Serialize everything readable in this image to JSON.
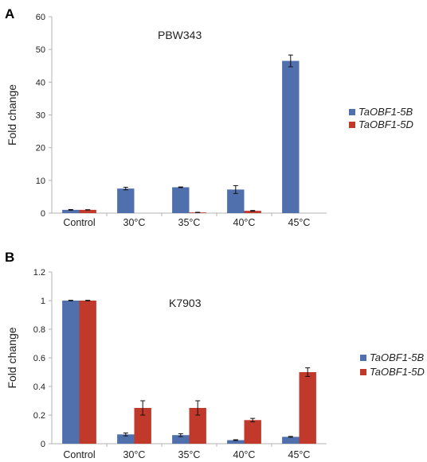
{
  "chart_data": [
    {
      "type": "bar",
      "panel_label": "A",
      "annotation": "PBW343",
      "ylabel": "Fold change",
      "xlabel": "",
      "ylim": [
        0,
        60
      ],
      "yticks": [
        "0",
        "10",
        "20",
        "30",
        "40",
        "50",
        "60"
      ],
      "grid": false,
      "legend_position": "right",
      "categories": [
        "Control",
        "30°C",
        "35°C",
        "40°C",
        "45°C"
      ],
      "series": [
        {
          "name": "TaOBF1-5B",
          "color": "#4f6fad",
          "values": [
            1.0,
            7.5,
            7.9,
            7.2,
            46.5
          ],
          "errors": [
            0.1,
            0.4,
            0.1,
            1.2,
            1.8
          ]
        },
        {
          "name": "TaOBF1-5D",
          "color": "#c0392b",
          "values": [
            1.0,
            null,
            0.2,
            0.7,
            null
          ],
          "errors": [
            0.05,
            null,
            0.05,
            0.1,
            null
          ]
        }
      ]
    },
    {
      "type": "bar",
      "panel_label": "B",
      "annotation": "K7903",
      "ylabel": "Fold change",
      "xlabel": "",
      "ylim": [
        0,
        1.2
      ],
      "yticks": [
        "0",
        "0.2",
        "0.4",
        "0.6",
        "0.8",
        "1",
        "1.2"
      ],
      "grid": false,
      "legend_position": "right",
      "categories": [
        "Control",
        "30°C",
        "35°C",
        "40°C",
        "45°C"
      ],
      "series": [
        {
          "name": "TaOBF1-5B",
          "color": "#4f6fad",
          "values": [
            1.0,
            0.065,
            0.06,
            0.025,
            0.048
          ],
          "errors": [
            0.002,
            0.01,
            0.01,
            0.003,
            0.003
          ]
        },
        {
          "name": "TaOBF1-5D",
          "color": "#c0392b",
          "values": [
            1.0,
            0.25,
            0.25,
            0.165,
            0.5
          ],
          "errors": [
            0.002,
            0.05,
            0.05,
            0.012,
            0.03
          ]
        }
      ]
    }
  ]
}
